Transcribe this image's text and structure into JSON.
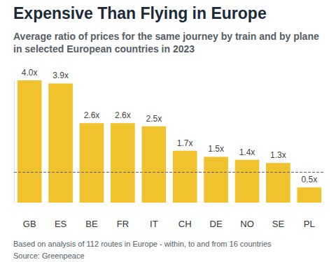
{
  "chart_data": {
    "type": "bar",
    "title": "Expensive Than Flying in Europe",
    "subtitle": "Average ratio of prices for the same journey by train and by plane in selected European countries in 2023",
    "notes": [
      "Based on analysis of 112 routes in Europe - within, to and from 16 countries",
      "Source: Greenpeace"
    ],
    "categories": [
      "GB",
      "ES",
      "BE",
      "FR",
      "IT",
      "CH",
      "DE",
      "NO",
      "SE",
      "PL"
    ],
    "values": [
      4.0,
      3.9,
      2.6,
      2.6,
      2.5,
      1.7,
      1.5,
      1.4,
      1.3,
      0.5
    ],
    "value_labels": [
      "4.0x",
      "3.9x",
      "2.6x",
      "2.6x",
      "2.5x",
      "1.7x",
      "1.5x",
      "1.4x",
      "1.3x",
      "0.5x"
    ],
    "reference_line": 1,
    "color": "#f0c22e",
    "ylim": [
      0,
      4
    ],
    "grid": false,
    "data_labels": true,
    "tick_labels": "x"
  }
}
